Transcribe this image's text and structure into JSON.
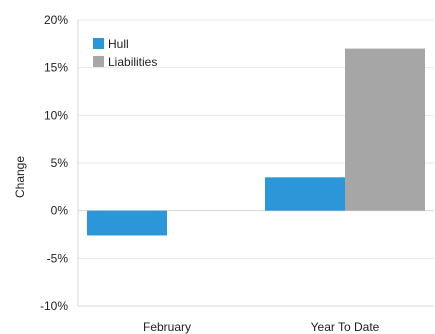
{
  "chart_data": {
    "type": "bar",
    "categories": [
      "February",
      "Year To Date"
    ],
    "series": [
      {
        "name": "Hull",
        "values": [
          -2.6,
          3.5
        ],
        "color": "#2b96d8"
      },
      {
        "name": "Liabilities",
        "values": [
          null,
          17.0
        ],
        "color": "#a6a6a6"
      }
    ],
    "title": "",
    "xlabel": "",
    "ylabel": "Change",
    "ylim": [
      -10,
      20
    ],
    "yticks": [
      "-10%",
      "-5%",
      "0%",
      "5%",
      "10%",
      "15%",
      "20%"
    ],
    "grid": true,
    "legend_position": "top-left",
    "gridline_color": "#e8e8e8",
    "axis_color": "#d9d9d9"
  }
}
